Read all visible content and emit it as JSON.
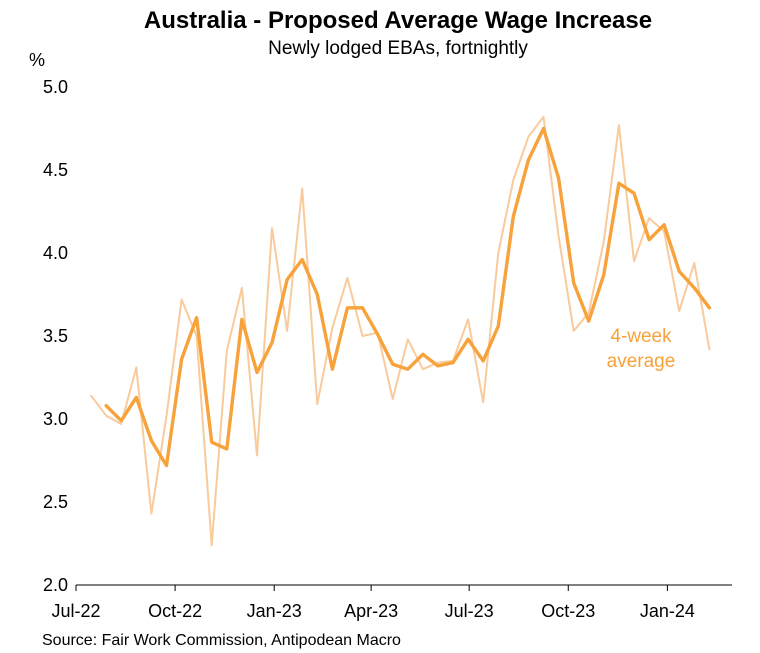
{
  "chart_data": {
    "type": "line",
    "title": "Australia - Proposed Average Wage Increase",
    "subtitle": "Newly lodged EBAs, fortnightly",
    "ylabel": "%",
    "ylim": [
      2.0,
      5.0
    ],
    "yticks": [
      "2.0",
      "2.5",
      "3.0",
      "3.5",
      "4.0",
      "4.5",
      "5.0"
    ],
    "xlim": [
      "2022-07-01",
      "2024-03-01"
    ],
    "xticks": [
      {
        "date": "2022-07-01",
        "label": "Jul-22"
      },
      {
        "date": "2022-10-01",
        "label": "Oct-22"
      },
      {
        "date": "2023-01-01",
        "label": "Jan-23"
      },
      {
        "date": "2023-04-01",
        "label": "Apr-23"
      },
      {
        "date": "2023-07-01",
        "label": "Jul-23"
      },
      {
        "date": "2023-10-01",
        "label": "Oct-23"
      },
      {
        "date": "2024-01-01",
        "label": "Jan-24"
      }
    ],
    "annotation": {
      "line1": "4-week",
      "line2": "average"
    },
    "source": "Source: Fair Work Commission, Antipodean Macro",
    "colors": {
      "fortnightly": "#F9CB9C",
      "average": "#F7A23B"
    },
    "series": [
      {
        "x": [
          "2022-07-15",
          "2022-07-29",
          "2022-08-12",
          "2022-08-26",
          "2022-09-09",
          "2022-09-23",
          "2022-10-07",
          "2022-10-21",
          "2022-11-04",
          "2022-11-18",
          "2022-12-02",
          "2022-12-16",
          "2022-12-30",
          "2023-01-13",
          "2023-01-27",
          "2023-02-10",
          "2023-02-24",
          "2023-03-10",
          "2023-03-24",
          "2023-04-07",
          "2023-04-21",
          "2023-05-05",
          "2023-05-19",
          "2023-06-02",
          "2023-06-16",
          "2023-06-30",
          "2023-07-14",
          "2023-07-28",
          "2023-08-11",
          "2023-08-25",
          "2023-09-08",
          "2023-09-22",
          "2023-10-06",
          "2023-10-20",
          "2023-11-03",
          "2023-11-17",
          "2023-12-01",
          "2023-12-15",
          "2023-12-29",
          "2024-01-12",
          "2024-01-26",
          "2024-02-09"
        ],
        "values": [
          3.14,
          3.02,
          2.97,
          3.31,
          2.43,
          3.02,
          3.72,
          3.5,
          2.24,
          3.41,
          3.79,
          2.78,
          4.15,
          3.53,
          4.39,
          3.09,
          3.55,
          3.85,
          3.5,
          3.52,
          3.12,
          3.48,
          3.3,
          3.34,
          3.35,
          3.6,
          3.1,
          4.0,
          4.44,
          4.7,
          4.82,
          4.1,
          3.53,
          3.64,
          4.07,
          4.77,
          3.95,
          4.21,
          4.13,
          3.65,
          3.94,
          3.42
        ]
      },
      {
        "x": [
          "2022-07-29",
          "2022-08-12",
          "2022-08-26",
          "2022-09-09",
          "2022-09-23",
          "2022-10-07",
          "2022-10-21",
          "2022-11-04",
          "2022-11-18",
          "2022-12-02",
          "2022-12-16",
          "2022-12-30",
          "2023-01-13",
          "2023-01-27",
          "2023-02-10",
          "2023-02-24",
          "2023-03-10",
          "2023-03-24",
          "2023-04-07",
          "2023-04-21",
          "2023-05-05",
          "2023-05-19",
          "2023-06-02",
          "2023-06-16",
          "2023-06-30",
          "2023-07-14",
          "2023-07-28",
          "2023-08-11",
          "2023-08-25",
          "2023-09-08",
          "2023-09-22",
          "2023-10-06",
          "2023-10-20",
          "2023-11-03",
          "2023-11-17",
          "2023-12-01",
          "2023-12-15",
          "2023-12-29",
          "2024-01-12",
          "2024-01-26",
          "2024-02-09"
        ],
        "values": [
          3.08,
          2.99,
          3.13,
          2.87,
          2.72,
          3.36,
          3.61,
          2.86,
          2.82,
          3.6,
          3.28,
          3.46,
          3.84,
          3.96,
          3.75,
          3.3,
          3.67,
          3.67,
          3.51,
          3.33,
          3.3,
          3.39,
          3.32,
          3.34,
          3.48,
          3.35,
          3.56,
          4.22,
          4.56,
          4.75,
          4.45,
          3.82,
          3.59,
          3.87,
          4.42,
          4.36,
          4.08,
          4.17,
          3.89,
          3.79,
          3.67
        ]
      }
    ]
  }
}
